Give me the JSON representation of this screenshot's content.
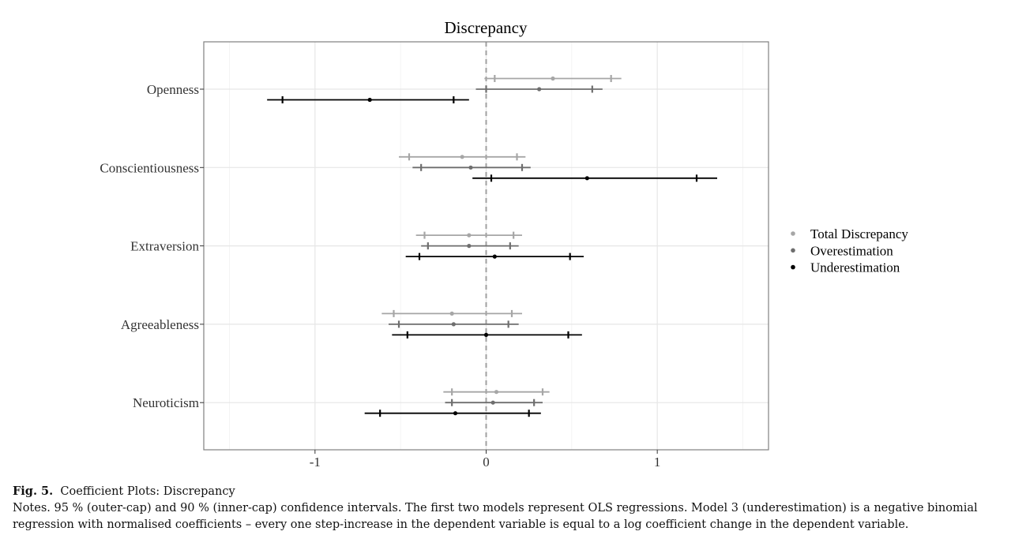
{
  "chart_data": {
    "type": "coefficient-plot",
    "title": "Discrepancy",
    "xlim": [
      -1.65,
      1.65
    ],
    "x_ticks": [
      -1,
      0,
      1
    ],
    "x_tick_labels": [
      "-1",
      "0",
      "1"
    ],
    "reference_line": 0,
    "grid": true,
    "legend_position": "right",
    "categories": [
      "Openness",
      "Conscientiousness",
      "Extraversion",
      "Agreeableness",
      "Neuroticism"
    ],
    "series": [
      {
        "name": "Total Discrepancy",
        "color": "#a6a6a6",
        "points": [
          {
            "category": "Openness",
            "estimate": 0.39,
            "ci95": [
              -0.01,
              0.79
            ],
            "ci90": [
              0.05,
              0.73
            ]
          },
          {
            "category": "Conscientiousness",
            "estimate": -0.14,
            "ci95": [
              -0.51,
              0.23
            ],
            "ci90": [
              -0.45,
              0.18
            ]
          },
          {
            "category": "Extraversion",
            "estimate": -0.1,
            "ci95": [
              -0.41,
              0.21
            ],
            "ci90": [
              -0.36,
              0.16
            ]
          },
          {
            "category": "Agreeableness",
            "estimate": -0.2,
            "ci95": [
              -0.61,
              0.21
            ],
            "ci90": [
              -0.54,
              0.15
            ]
          },
          {
            "category": "Neuroticism",
            "estimate": 0.06,
            "ci95": [
              -0.25,
              0.37
            ],
            "ci90": [
              -0.2,
              0.33
            ]
          }
        ]
      },
      {
        "name": "Overestimation",
        "color": "#6e6e6e",
        "points": [
          {
            "category": "Openness",
            "estimate": 0.31,
            "ci95": [
              -0.06,
              0.68
            ],
            "ci90": [
              0.0,
              0.62
            ]
          },
          {
            "category": "Conscientiousness",
            "estimate": -0.09,
            "ci95": [
              -0.43,
              0.26
            ],
            "ci90": [
              -0.38,
              0.21
            ]
          },
          {
            "category": "Extraversion",
            "estimate": -0.1,
            "ci95": [
              -0.38,
              0.19
            ],
            "ci90": [
              -0.34,
              0.14
            ]
          },
          {
            "category": "Agreeableness",
            "estimate": -0.19,
            "ci95": [
              -0.57,
              0.19
            ],
            "ci90": [
              -0.51,
              0.13
            ]
          },
          {
            "category": "Neuroticism",
            "estimate": 0.04,
            "ci95": [
              -0.24,
              0.33
            ],
            "ci90": [
              -0.2,
              0.28
            ]
          }
        ]
      },
      {
        "name": "Underestimation",
        "color": "#000000",
        "points": [
          {
            "category": "Openness",
            "estimate": -0.68,
            "ci95": [
              -1.28,
              -0.1
            ],
            "ci90": [
              -1.19,
              -0.19
            ]
          },
          {
            "category": "Conscientiousness",
            "estimate": 0.59,
            "ci95": [
              -0.08,
              1.35
            ],
            "ci90": [
              0.03,
              1.23
            ]
          },
          {
            "category": "Extraversion",
            "estimate": 0.05,
            "ci95": [
              -0.47,
              0.57
            ],
            "ci90": [
              -0.39,
              0.49
            ]
          },
          {
            "category": "Agreeableness",
            "estimate": 0.0,
            "ci95": [
              -0.55,
              0.56
            ],
            "ci90": [
              -0.46,
              0.48
            ]
          },
          {
            "category": "Neuroticism",
            "estimate": -0.18,
            "ci95": [
              -0.71,
              0.32
            ],
            "ci90": [
              -0.62,
              0.25
            ]
          }
        ]
      }
    ]
  },
  "caption": {
    "label": "Fig. 5.",
    "title": "Coefficient Plots: Discrepancy",
    "notes": "Notes. 95 % (outer-cap) and 90 % (inner-cap) confidence intervals. The first two models represent OLS regressions. Model 3 (underestimation) is a negative binomial regression with normalised coefficients – every one step-increase in the dependent variable is equal to a log coefficient change in the dependent variable."
  }
}
